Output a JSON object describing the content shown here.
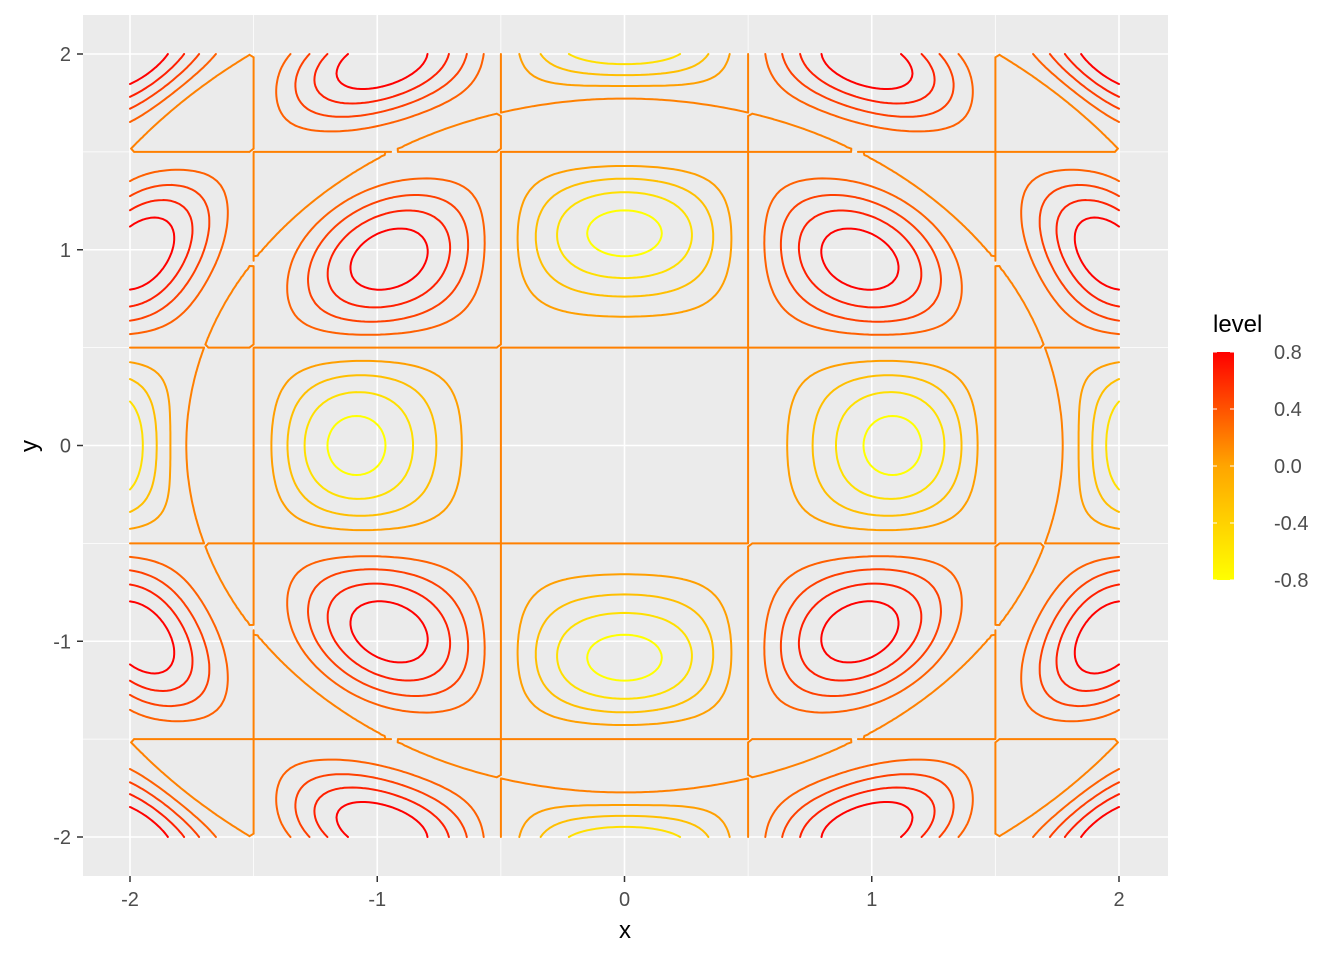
{
  "chart_data": {
    "type": "contour",
    "z_function": "cos(pi*x) * cos(pi*y) * sin(x^2 + y^2)",
    "x_range": [
      -2,
      2
    ],
    "y_range": [
      -2,
      2
    ],
    "levels": [
      -0.8,
      -0.6,
      -0.4,
      -0.2,
      0.0,
      0.2,
      0.4,
      0.6,
      0.8
    ],
    "xlabel": "x",
    "ylabel": "y",
    "x_ticks": [
      "-2",
      "-1",
      "0",
      "1",
      "2"
    ],
    "y_ticks": [
      "-2",
      "-1",
      "0",
      "1",
      "2"
    ],
    "grid": true,
    "legend": {
      "title": "level",
      "position": "right",
      "labels": [
        "0.8",
        "0.4",
        "0.0",
        "-0.4",
        "-0.8"
      ],
      "low_color": "#FFFF00",
      "high_color": "#FF0000"
    },
    "panel_background": "#EBEBEB"
  }
}
